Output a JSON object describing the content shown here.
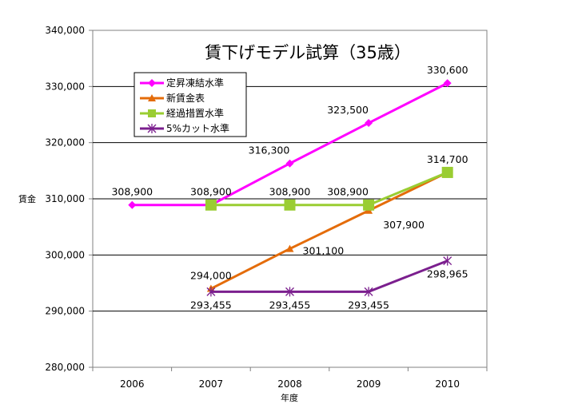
{
  "chart_data": {
    "type": "line",
    "title": "賃下げモデル試算（35歳）",
    "xlabel": "年度",
    "ylabel": "賃金",
    "categories": [
      "2006",
      "2007",
      "2008",
      "2009",
      "2010"
    ],
    "ylim": [
      280000,
      340000
    ],
    "yticks": [
      "280,000",
      "290,000",
      "300,000",
      "310,000",
      "320,000",
      "330,000",
      "340,000"
    ],
    "grid": true,
    "legend_position": "top-left",
    "series": [
      {
        "name": "定昇凍結水準",
        "color": "#ff00ff",
        "marker": "diamond",
        "values": [
          308900,
          308900,
          316300,
          323500,
          330600
        ]
      },
      {
        "name": "新賃金表",
        "color": "#e46c0a",
        "marker": "triangle",
        "values": [
          null,
          294000,
          301100,
          307900,
          314700
        ]
      },
      {
        "name": "経過措置水準",
        "color": "#9acd32",
        "marker": "square",
        "values": [
          null,
          308900,
          308900,
          308900,
          314700
        ]
      },
      {
        "name": "5%カット水準",
        "color": "#7b1f8e",
        "marker": "star",
        "values": [
          null,
          293455,
          293455,
          293455,
          298965
        ]
      }
    ],
    "data_labels": [
      {
        "text": "308,900",
        "cat": 0,
        "value": 308900,
        "anchor": "above"
      },
      {
        "text": "308,900",
        "cat": 1,
        "value": 308900,
        "anchor": "above"
      },
      {
        "text": "316,300",
        "cat": 2,
        "value": 316300,
        "anchor": "above-left"
      },
      {
        "text": "323,500",
        "cat": 3,
        "value": 323500,
        "anchor": "above-left"
      },
      {
        "text": "330,600",
        "cat": 4,
        "value": 330600,
        "anchor": "above"
      },
      {
        "text": "308,900",
        "cat": 2,
        "value": 308900,
        "anchor": "above"
      },
      {
        "text": "308,900",
        "cat": 3,
        "value": 308900,
        "anchor": "above-left"
      },
      {
        "text": "314,700",
        "cat": 4,
        "value": 314700,
        "anchor": "above"
      },
      {
        "text": "307,900",
        "cat": 3,
        "value": 307900,
        "anchor": "below-right"
      },
      {
        "text": "301,100",
        "cat": 2,
        "value": 301100,
        "anchor": "right"
      },
      {
        "text": "294,000",
        "cat": 1,
        "value": 294000,
        "anchor": "above"
      },
      {
        "text": "293,455",
        "cat": 1,
        "value": 293455,
        "anchor": "below"
      },
      {
        "text": "293,455",
        "cat": 2,
        "value": 293455,
        "anchor": "below"
      },
      {
        "text": "293,455",
        "cat": 3,
        "value": 293455,
        "anchor": "below"
      },
      {
        "text": "298,965",
        "cat": 4,
        "value": 298965,
        "anchor": "below"
      }
    ]
  }
}
